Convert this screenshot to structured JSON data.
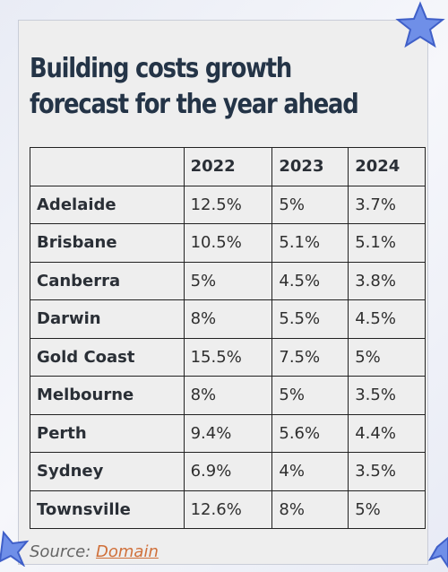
{
  "title": "Building costs growth forecast for the year ahead",
  "source": {
    "prefix": "Source: ",
    "link_text": "Domain"
  },
  "colors": {
    "title": "#243447",
    "link": "#d0703a",
    "star": "#5b7be0",
    "card": "#eeeeee"
  },
  "chart_data": {
    "type": "table",
    "title": "Building costs growth forecast for the year ahead",
    "columns": [
      "",
      "2022",
      "2023",
      "2024"
    ],
    "rows": [
      {
        "city": "Adelaide",
        "values": [
          "12.5%",
          "5%",
          "3.7%"
        ]
      },
      {
        "city": "Brisbane",
        "values": [
          "10.5%",
          "5.1%",
          "5.1%"
        ]
      },
      {
        "city": "Canberra",
        "values": [
          "5%",
          "4.5%",
          "3.8%"
        ]
      },
      {
        "city": "Darwin",
        "values": [
          "8%",
          "5.5%",
          "4.5%"
        ]
      },
      {
        "city": "Gold Coast",
        "values": [
          "15.5%",
          "7.5%",
          "5%"
        ]
      },
      {
        "city": "Melbourne",
        "values": [
          "8%",
          "5%",
          "3.5%"
        ]
      },
      {
        "city": "Perth",
        "values": [
          "9.4%",
          "5.6%",
          "4.4%"
        ]
      },
      {
        "city": "Sydney",
        "values": [
          "6.9%",
          "4%",
          "3.5%"
        ]
      },
      {
        "city": "Townsville",
        "values": [
          "12.6%",
          "8%",
          "5%"
        ]
      }
    ]
  }
}
